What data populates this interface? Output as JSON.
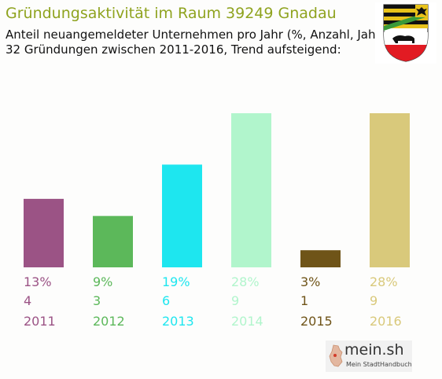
{
  "header": {
    "title": "Gründungsaktivität im Raum 39249 Gnadau",
    "subtitle_line1": "Anteil neuangemeldeter Unternehmen pro Jahr (%, Anzahl, Jahr)",
    "subtitle_line2": "32 Gründungen zwischen 2011-2016, Trend aufsteigend:"
  },
  "logo": {
    "name": "mein.sh",
    "tagline": "Mein StadtHandbuch"
  },
  "crest": {
    "icon": "coat-of-arms-icon"
  },
  "chart_data": {
    "type": "bar",
    "title": "Gründungsaktivität im Raum 39249 Gnadau",
    "categories": [
      "2011",
      "2012",
      "2013",
      "2014",
      "2015",
      "2016"
    ],
    "values": [
      4,
      3,
      6,
      9,
      1,
      9
    ],
    "percent_labels": [
      "13%",
      "9%",
      "19%",
      "28%",
      "3%",
      "28%"
    ],
    "count_labels": [
      "4",
      "3",
      "6",
      "9",
      "1",
      "9"
    ],
    "colors": [
      "#9b5385",
      "#5cb85a",
      "#1ee6ef",
      "#b1f5cc",
      "#6f5418",
      "#d9c97b"
    ],
    "ylim": [
      0,
      9
    ],
    "grid": false,
    "legend": "none"
  }
}
